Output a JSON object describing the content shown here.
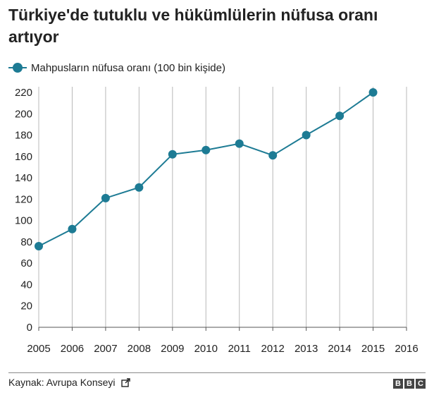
{
  "header": {
    "title": "Türkiye'de tutuklu ve hükümlülerin nüfusa oranı artıyor"
  },
  "footer": {
    "source": "Kaynak: Avrupa Konseyi",
    "brand_letters": [
      "B",
      "B",
      "C"
    ],
    "external_link_icon": "external-link-icon"
  },
  "colors": {
    "series": "#1d7b94",
    "grid": "#b8b8b8",
    "axis": "#555555",
    "text": "#222222",
    "brand_block": "#444444"
  },
  "chart_data": {
    "type": "line",
    "title": "Türkiye'de tutuklu ve hükümlülerin nüfusa oranı artıyor",
    "xlabel": "",
    "ylabel": "",
    "legend_position": "top-left",
    "grid": {
      "vertical": true,
      "horizontal": false
    },
    "x_ticks": [
      2005,
      2006,
      2007,
      2008,
      2009,
      2010,
      2011,
      2012,
      2013,
      2014,
      2015,
      2016
    ],
    "y_ticks": [
      0,
      20,
      40,
      60,
      80,
      100,
      120,
      140,
      160,
      180,
      200,
      220
    ],
    "xlim": [
      2005,
      2016
    ],
    "ylim": [
      0,
      220
    ],
    "series": [
      {
        "name": "Mahpusların nüfusa oranı (100 bin kişide)",
        "x": [
          2005,
          2006,
          2007,
          2008,
          2009,
          2010,
          2011,
          2012,
          2013,
          2014,
          2015
        ],
        "values": [
          76,
          92,
          121,
          131,
          162,
          166,
          172,
          161,
          180,
          198,
          220
        ]
      }
    ]
  }
}
